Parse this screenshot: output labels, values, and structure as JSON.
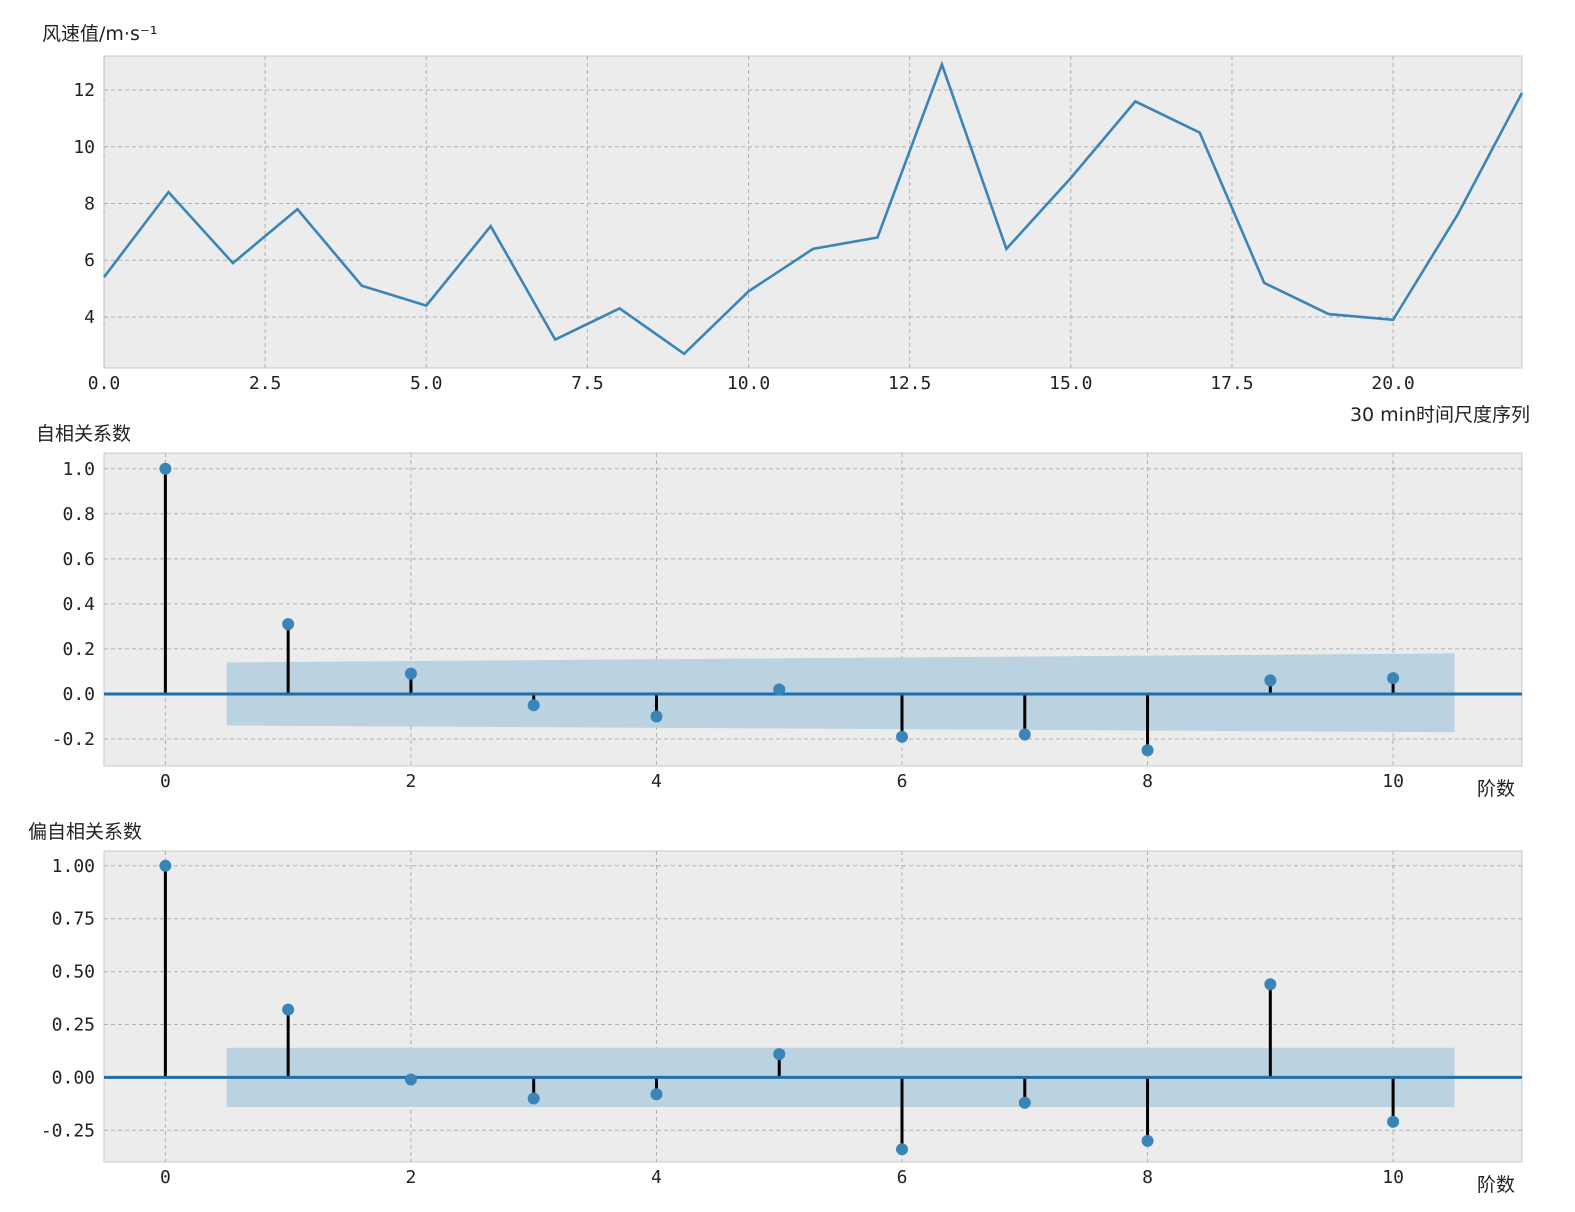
{
  "colors": {
    "background": "#ffffff",
    "plot_bg": "#ececec",
    "grid": "#b0b0b0",
    "line": "#3a85b8",
    "marker": "#3a85b8",
    "stem": "#000000",
    "baseline": "#1f6fa8",
    "confidence_band": "#bbd2e0"
  },
  "chart_data": [
    {
      "type": "line",
      "ylabel": "风速值/m·s⁻¹",
      "xlabel": "30 min时间尺度序列",
      "x": [
        0,
        1,
        2,
        3,
        4,
        5,
        6,
        7,
        8,
        9,
        10,
        11,
        12,
        13,
        14,
        15,
        16,
        17,
        18,
        19,
        20,
        21,
        22
      ],
      "series": [
        {
          "values": [
            5.4,
            8.4,
            5.9,
            7.8,
            5.1,
            4.4,
            7.2,
            3.2,
            4.3,
            2.7,
            4.9,
            6.4,
            6.8,
            12.9,
            6.4,
            8.9,
            11.6,
            10.5,
            5.2,
            4.1,
            3.9,
            7.6,
            11.9
          ]
        }
      ],
      "xlim": [
        0,
        22
      ],
      "ylim": [
        2.2,
        13.2
      ],
      "xticks": [
        0,
        2.5,
        5,
        7.5,
        10,
        12.5,
        15,
        17.5,
        20
      ],
      "xtick_labels": [
        "0.0",
        "2.5",
        "5.0",
        "7.5",
        "10.0",
        "12.5",
        "15.0",
        "17.5",
        "20.0"
      ],
      "yticks": [
        4,
        6,
        8,
        10,
        12
      ],
      "ytick_labels": [
        "4",
        "6",
        "8",
        "10",
        "12"
      ],
      "grid": true
    },
    {
      "type": "stem",
      "ylabel": "自相关系数",
      "xlabel": "阶数",
      "lags": [
        0,
        1,
        2,
        3,
        4,
        5,
        6,
        7,
        8,
        9,
        10
      ],
      "values": [
        1.0,
        0.31,
        0.09,
        -0.05,
        -0.1,
        0.02,
        -0.19,
        -0.18,
        -0.25,
        0.06,
        0.07
      ],
      "confidence_band": {
        "x_start": 0.5,
        "x_end": 10.5,
        "upper_start": 0.14,
        "upper_end": 0.18,
        "lower_start": -0.14,
        "lower_end": -0.17
      },
      "xlim": [
        -0.5,
        11.05
      ],
      "ylim": [
        -0.32,
        1.07
      ],
      "xticks": [
        0,
        2,
        4,
        6,
        8,
        10
      ],
      "xtick_labels": [
        "0",
        "2",
        "4",
        "6",
        "8",
        "10"
      ],
      "yticks": [
        -0.2,
        0.0,
        0.2,
        0.4,
        0.6,
        0.8,
        1.0
      ],
      "ytick_labels": [
        "-0.2",
        "0.0",
        "0.2",
        "0.4",
        "0.6",
        "0.8",
        "1.0"
      ],
      "grid": true
    },
    {
      "type": "stem",
      "ylabel": "偏自相关系数",
      "xlabel": "阶数",
      "lags": [
        0,
        1,
        2,
        3,
        4,
        5,
        6,
        7,
        8,
        9,
        10
      ],
      "values": [
        1.0,
        0.32,
        -0.01,
        -0.1,
        -0.08,
        0.11,
        -0.34,
        -0.12,
        -0.3,
        0.44,
        -0.21
      ],
      "confidence_band": {
        "x_start": 0.5,
        "x_end": 10.5,
        "upper_start": 0.14,
        "upper_end": 0.14,
        "lower_start": -0.14,
        "lower_end": -0.14
      },
      "xlim": [
        -0.5,
        11.05
      ],
      "ylim": [
        -0.4,
        1.07
      ],
      "xticks": [
        0,
        2,
        4,
        6,
        8,
        10
      ],
      "xtick_labels": [
        "0",
        "2",
        "4",
        "6",
        "8",
        "10"
      ],
      "yticks": [
        -0.25,
        0.0,
        0.25,
        0.5,
        0.75,
        1.0
      ],
      "ytick_labels": [
        "-0.25",
        "0.00",
        "0.25",
        "0.50",
        "0.75",
        "1.00"
      ],
      "grid": true
    }
  ]
}
